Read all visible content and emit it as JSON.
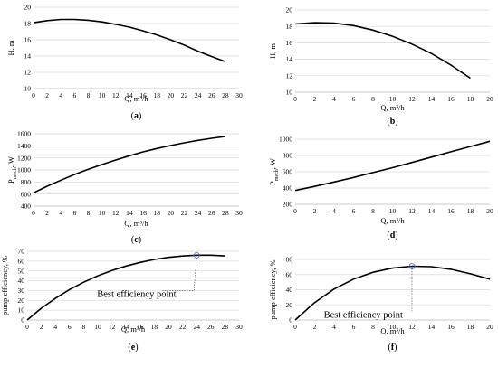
{
  "chart_data": [
    {
      "type": "line",
      "panel_label": "a",
      "xlabel": "Q, m³/h",
      "ylabel": "H, m",
      "xlim": [
        0,
        30
      ],
      "ylim": [
        10,
        20
      ],
      "xticks": [
        0,
        2,
        4,
        6,
        8,
        10,
        12,
        14,
        16,
        18,
        20,
        22,
        24,
        26,
        28,
        30
      ],
      "yticks": [
        10,
        12,
        14,
        16,
        18,
        20
      ],
      "grid": "horizontal",
      "series": [
        {
          "x": [
            0,
            2,
            4,
            6,
            8,
            10,
            12,
            14,
            16,
            18,
            20,
            22,
            24,
            26,
            28
          ],
          "values": [
            18.1,
            18.35,
            18.5,
            18.5,
            18.4,
            18.2,
            17.9,
            17.55,
            17.1,
            16.6,
            16.0,
            15.35,
            14.6,
            13.95,
            13.3
          ]
        }
      ]
    },
    {
      "type": "line",
      "panel_label": "b",
      "xlabel": "Q, m³/h",
      "ylabel": "H, m",
      "xlim": [
        0,
        20
      ],
      "ylim": [
        10,
        20
      ],
      "xticks": [
        0,
        2,
        4,
        6,
        8,
        10,
        12,
        14,
        16,
        18,
        20
      ],
      "yticks": [
        10,
        12,
        14,
        16,
        18,
        20
      ],
      "grid": "horizontal",
      "series": [
        {
          "x": [
            0,
            2,
            4,
            6,
            8,
            10,
            12,
            14,
            16,
            18
          ],
          "values": [
            18.3,
            18.45,
            18.4,
            18.1,
            17.55,
            16.8,
            15.85,
            14.7,
            13.3,
            11.7
          ]
        }
      ]
    },
    {
      "type": "line",
      "panel_label": "c",
      "xlabel": "Q, m³/h",
      "ylabel": "P",
      "ylabel_sub": "mech",
      "ylabel_tail": ", W",
      "xlim": [
        0,
        30
      ],
      "ylim": [
        400,
        1600
      ],
      "xticks": [
        0,
        2,
        4,
        6,
        8,
        10,
        12,
        14,
        16,
        18,
        20,
        22,
        24,
        26,
        28,
        30
      ],
      "yticks": [
        400,
        600,
        800,
        1000,
        1200,
        1400,
        1600
      ],
      "grid": "horizontal",
      "series": [
        {
          "x": [
            0,
            2,
            4,
            6,
            8,
            10,
            12,
            14,
            16,
            18,
            20,
            22,
            24,
            26,
            28
          ],
          "values": [
            620,
            730,
            830,
            925,
            1010,
            1090,
            1165,
            1235,
            1300,
            1355,
            1405,
            1450,
            1490,
            1525,
            1555
          ]
        }
      ]
    },
    {
      "type": "line",
      "panel_label": "d",
      "xlabel": "Q, m³/h",
      "ylabel": "P",
      "ylabel_sub": "mech",
      "ylabel_tail": ", W",
      "xlim": [
        0,
        20
      ],
      "ylim": [
        200,
        1000
      ],
      "xticks": [
        0,
        2,
        4,
        6,
        8,
        10,
        12,
        14,
        16,
        18,
        20
      ],
      "yticks": [
        200,
        400,
        600,
        800,
        1000
      ],
      "grid": "horizontal",
      "series": [
        {
          "x": [
            0,
            2,
            4,
            6,
            8,
            10,
            12,
            14,
            16,
            18,
            20
          ],
          "values": [
            370,
            420,
            475,
            530,
            590,
            650,
            715,
            780,
            845,
            910,
            975
          ]
        }
      ]
    },
    {
      "type": "line",
      "panel_label": "e",
      "xlabel": "Q, m³/h",
      "ylabel": "pump efficiency, %",
      "xlim": [
        0,
        30
      ],
      "ylim": [
        0,
        70
      ],
      "xticks": [
        0,
        2,
        4,
        6,
        8,
        10,
        12,
        14,
        16,
        18,
        20,
        22,
        24,
        26,
        28,
        30
      ],
      "yticks": [
        0,
        10,
        20,
        30,
        40,
        50,
        60,
        70
      ],
      "grid": "horizontal",
      "series": [
        {
          "x": [
            0,
            2,
            4,
            6,
            8,
            10,
            12,
            14,
            16,
            18,
            20,
            22,
            24,
            26,
            28
          ],
          "values": [
            0,
            12,
            22,
            31,
            38.5,
            45,
            50.5,
            55,
            58.7,
            61.7,
            63.8,
            65.2,
            66,
            66,
            65.3
          ]
        }
      ],
      "marker": {
        "x": 24,
        "y": 66
      },
      "annotation": {
        "text": "Best efficiency point",
        "x": 15.5,
        "y": 27
      }
    },
    {
      "type": "line",
      "panel_label": "f",
      "xlabel": "Q, m³/h",
      "ylabel": "pump efficiency, %",
      "xlim": [
        0,
        20
      ],
      "ylim": [
        0,
        80
      ],
      "xticks": [
        0,
        2,
        4,
        6,
        8,
        10,
        12,
        14,
        16,
        18,
        20
      ],
      "yticks": [
        0,
        20,
        40,
        60,
        80
      ],
      "grid": "horizontal",
      "series": [
        {
          "x": [
            0,
            2,
            4,
            6,
            8,
            10,
            12,
            14,
            16,
            18,
            20
          ],
          "values": [
            0,
            23,
            41,
            54,
            63,
            68.5,
            71,
            70.5,
            67,
            61,
            54
          ]
        }
      ],
      "marker": {
        "x": 12,
        "y": 71
      },
      "annotation": {
        "text": "Best efficiency point",
        "x": 7,
        "y": 8
      }
    }
  ]
}
